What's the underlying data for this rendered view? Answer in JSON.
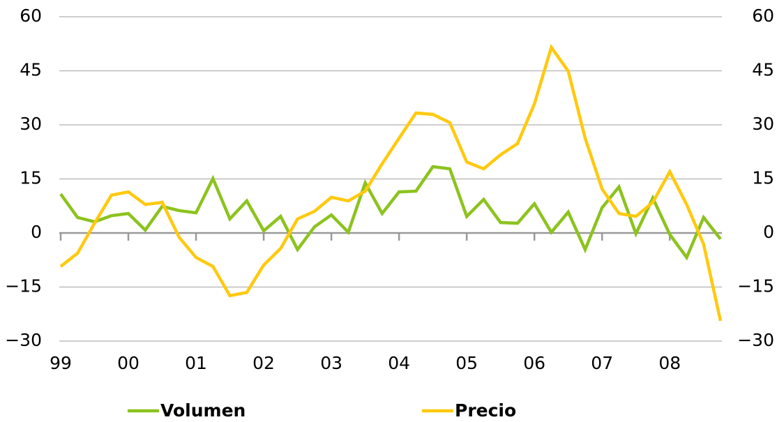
{
  "chart_data": {
    "type": "line",
    "categories": [
      "99",
      null,
      null,
      null,
      "00",
      null,
      null,
      null,
      "01",
      null,
      null,
      null,
      "02",
      null,
      null,
      null,
      "03",
      null,
      null,
      null,
      "04",
      null,
      null,
      null,
      "05",
      null,
      null,
      null,
      "06",
      null,
      null,
      null,
      "07",
      null,
      null,
      null,
      "08",
      null,
      null,
      null
    ],
    "series": [
      {
        "name": "Volumen",
        "color": "#8cc31e",
        "values": [
          10.8,
          4.3,
          3.1,
          4.8,
          5.4,
          0.8,
          7.4,
          6.2,
          5.6,
          15.1,
          3.9,
          8.9,
          0.6,
          4.6,
          -4.6,
          1.7,
          5.0,
          0.2,
          13.9,
          5.4,
          11.4,
          11.6,
          18.4,
          17.8,
          4.6,
          9.3,
          2.9,
          2.7,
          8.1,
          0.2,
          5.8,
          -4.6,
          7.0,
          12.8,
          -0.2,
          9.7,
          -0.4,
          -6.8,
          4.3,
          -1.7
        ]
      },
      {
        "name": "Precio",
        "color": "#ffc90e",
        "values": [
          -9.3,
          -5.6,
          2.7,
          10.5,
          11.4,
          7.9,
          8.5,
          -1.2,
          -6.8,
          -9.3,
          -17.4,
          -16.5,
          -8.9,
          -4.3,
          3.9,
          6.0,
          9.9,
          8.9,
          11.6,
          19.2,
          26.3,
          33.3,
          32.9,
          30.6,
          19.7,
          17.8,
          21.7,
          24.8,
          35.8,
          51.5,
          44.9,
          26.3,
          12.2,
          5.4,
          4.6,
          8.5,
          17.0,
          7.9,
          -3.1,
          -24.4
        ]
      }
    ],
    "ylim": [
      -30,
      60
    ],
    "yticks": [
      {
        "value": -30,
        "label": "−30"
      },
      {
        "value": -15,
        "label": "−15"
      },
      0,
      15,
      30,
      45,
      60
    ],
    "y2lim": [
      -30,
      60
    ],
    "y2ticks": [
      {
        "value": -30,
        "label": "−30"
      },
      {
        "value": -15,
        "label": "−15"
      },
      0,
      15,
      30,
      45,
      60
    ],
    "grid": true,
    "legend": "bottom"
  }
}
